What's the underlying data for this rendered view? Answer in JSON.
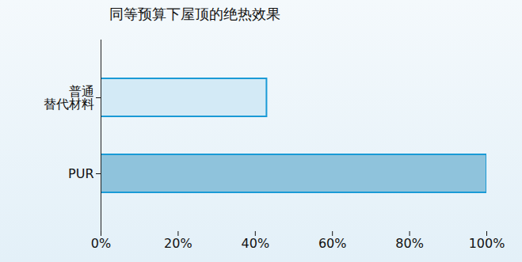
{
  "chart_data": {
    "type": "bar",
    "orientation": "horizontal",
    "title": "同等预算下屋顶的绝热效果",
    "categories": [
      "普通\n替代材料",
      "PUR"
    ],
    "values": [
      43,
      100
    ],
    "colors": [
      "#d3eaf6",
      "#8fc3dc"
    ],
    "xlim": [
      0,
      100
    ],
    "xticks": [
      {
        "value": 0,
        "label": "0%"
      },
      {
        "value": 20,
        "label": "20%"
      },
      {
        "value": 40,
        "label": "40%"
      },
      {
        "value": 60,
        "label": "60%"
      },
      {
        "value": 80,
        "label": "80%"
      },
      {
        "value": 100,
        "label": "100%"
      }
    ],
    "grid": false
  }
}
